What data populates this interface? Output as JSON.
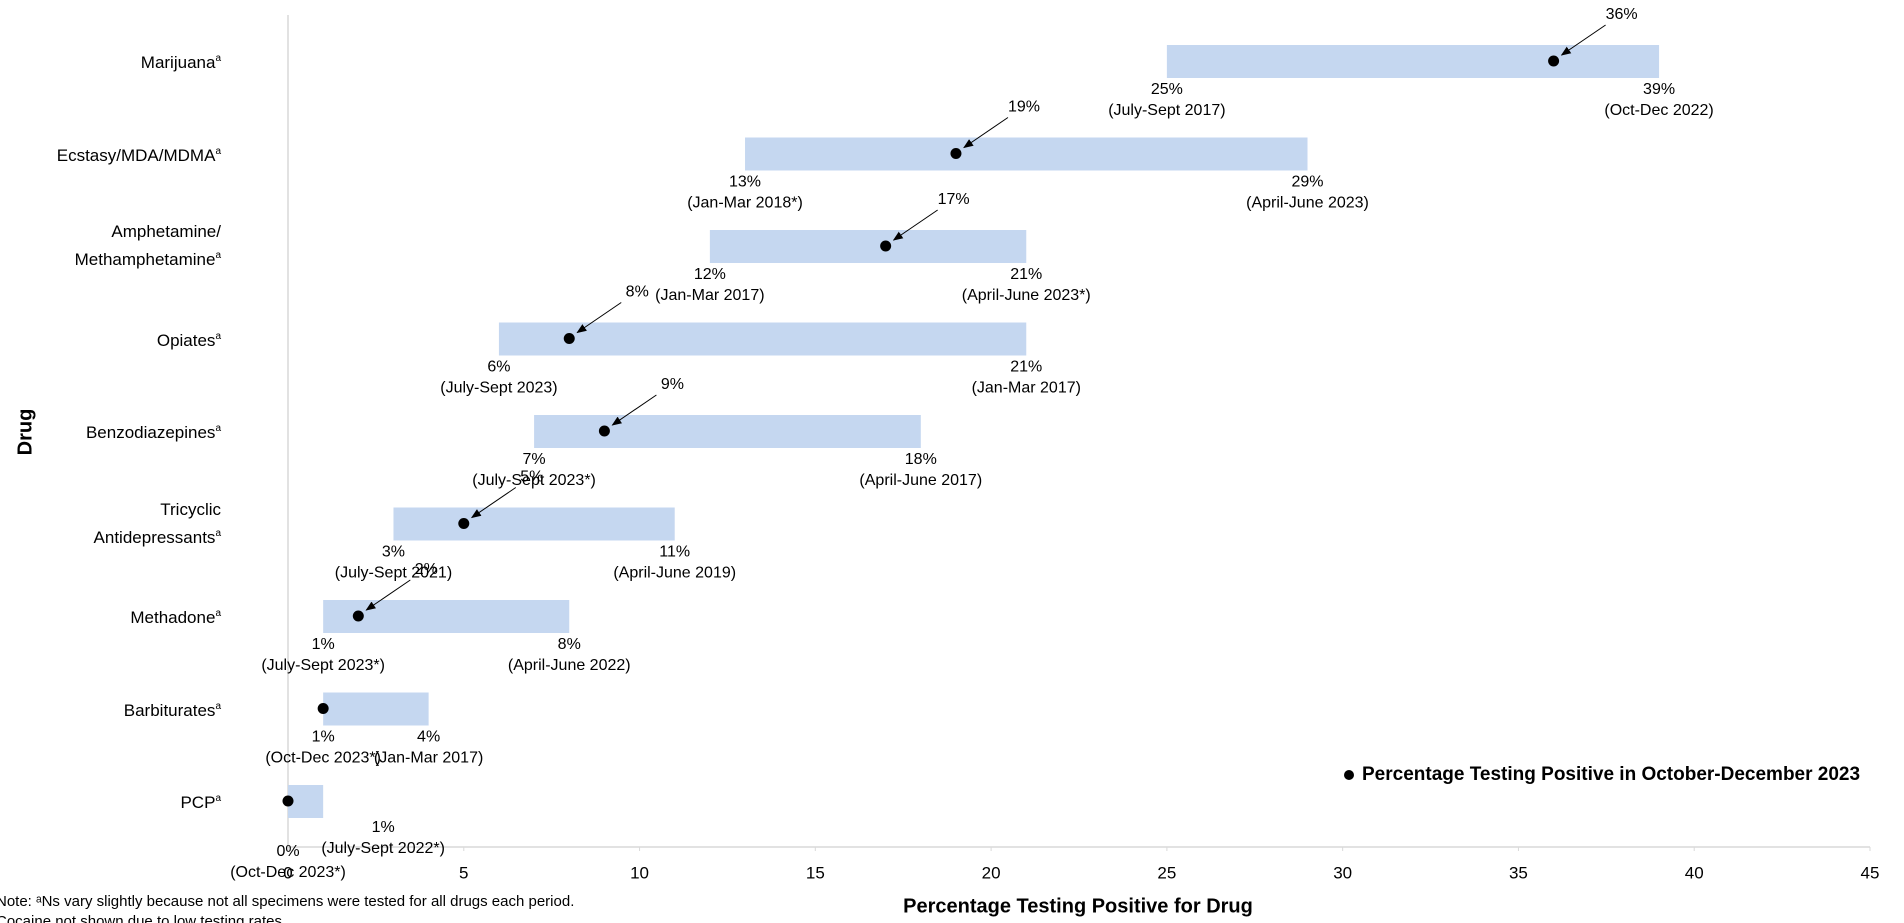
{
  "chart_data": {
    "type": "range",
    "x_label": "Percentage Testing Positive for Drug",
    "y_label": "Drug",
    "categories": [
      "Marijuana",
      "Ecstasy/MDA/MDMA",
      "Amphetamine/\nMethamphetamine",
      "Opiates",
      "Benzodiazepines",
      "Tricyclic\nAntidepressants",
      "Methadone",
      "Barbiturates",
      "PCP"
    ],
    "category_marker": "a",
    "low": {
      "values": [
        25,
        13,
        12,
        6,
        7,
        3,
        1,
        1,
        0
      ],
      "value_labels": [
        "25%",
        "13%",
        "12%",
        "6%",
        "7%",
        "3%",
        "1%",
        "1%",
        "0%"
      ],
      "periods": [
        "(July-Sept 2017)",
        "(Jan-Mar 2018*)",
        "(Jan-Mar 2017)",
        "(July-Sept 2023)",
        "(July-Sept 2023*)",
        "(July-Sept 2021)",
        "(July-Sept 2023*)",
        "(Oct-Dec 2023*)",
        "(Oct-Dec 2023*)"
      ]
    },
    "high": {
      "values": [
        39,
        29,
        21,
        21,
        18,
        11,
        8,
        4,
        1
      ],
      "value_labels": [
        "39%",
        "29%",
        "21%",
        "21%",
        "18%",
        "11%",
        "8%",
        "4%",
        "1%"
      ],
      "periods": [
        "(Oct-Dec 2022)",
        "(April-June 2023)",
        "(April-June 2023*)",
        "(Jan-Mar 2017)",
        "(April-June 2017)",
        "(April-June 2019)",
        "(April-June 2022)",
        "(Jan-Mar 2017)",
        "(July-Sept 2022*)"
      ]
    },
    "current": {
      "name": "Percentage Testing Positive in October-December 2023",
      "color": "#000000",
      "values": [
        36,
        19,
        17,
        8,
        9,
        5,
        2,
        1,
        0
      ],
      "value_labels": [
        "36%",
        "19%",
        "17%",
        "8%",
        "9%",
        "5%",
        "2%",
        null,
        null
      ]
    },
    "bar_color": "#c5d7f0",
    "xlim": [
      0,
      45
    ],
    "xticks": [
      0,
      5,
      10,
      15,
      20,
      25,
      30,
      35,
      40,
      45
    ],
    "grid": false,
    "legend": "lower right",
    "notes": [
      "Note: ᵃNs vary slightly because not all specimens were tested for all drugs each period.",
      "Cocaine not shown due to low testing rates."
    ]
  }
}
